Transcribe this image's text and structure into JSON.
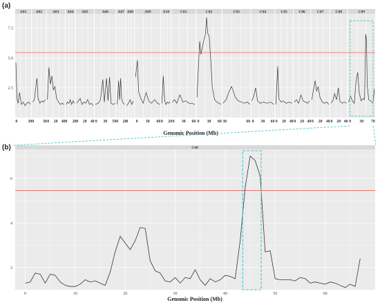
{
  "colors": {
    "panel_bg": "#ebebeb",
    "grid": "#ffffff",
    "strip_bg": "#d9d9d9",
    "line": "#333333",
    "threshold": "#e8605a",
    "highlight": "#4cc3c9"
  },
  "chart_data": [
    {
      "type": "line",
      "panel_tag": "(a)",
      "xlabel": "Genomic Position (Mb)",
      "ylabel": "",
      "ylim": [
        0,
        8.7
      ],
      "yticks": [
        "2.5",
        "5.0",
        "7.5"
      ],
      "threshold": 5.45,
      "grid": true,
      "highlight_box": "C09",
      "facets": [
        {
          "name": "A01",
          "xticks": [
            "0",
            "30"
          ],
          "series": [
            [
              0,
              4.6
            ],
            [
              3,
              1.6
            ],
            [
              6,
              1.2
            ],
            [
              10,
              2.1
            ],
            [
              15,
              1.1
            ],
            [
              20,
              1.3
            ],
            [
              25,
              1.0
            ],
            [
              30,
              1.2
            ],
            [
              35,
              1.3
            ],
            [
              40,
              1.1
            ]
          ]
        },
        {
          "name": "A02",
          "xticks": [
            "0",
            "30"
          ],
          "series": [
            [
              0,
              1.3
            ],
            [
              5,
              1.5
            ],
            [
              10,
              2.9
            ],
            [
              12,
              3.3
            ],
            [
              15,
              1.6
            ],
            [
              20,
              1.2
            ],
            [
              25,
              1.4
            ],
            [
              30,
              1.3
            ],
            [
              35,
              1.5
            ]
          ]
        },
        {
          "name": "A03",
          "xticks": [
            "0",
            "20",
            "40"
          ],
          "series": [
            [
              0,
              1.5
            ],
            [
              4,
              4.2
            ],
            [
              8,
              2.8
            ],
            [
              12,
              3.5
            ],
            [
              16,
              2.3
            ],
            [
              20,
              2.6
            ],
            [
              25,
              1.6
            ],
            [
              30,
              1.3
            ],
            [
              35,
              1.1
            ],
            [
              40,
              1.2
            ],
            [
              45,
              1.1
            ]
          ]
        },
        {
          "name": "A04",
          "xticks": [
            "0",
            "20"
          ],
          "series": [
            [
              0,
              1.1
            ],
            [
              4,
              1.3
            ],
            [
              8,
              1.2
            ],
            [
              12,
              1.5
            ],
            [
              16,
              1.1
            ],
            [
              20,
              1.4
            ],
            [
              24,
              1.2
            ]
          ]
        },
        {
          "name": "A05",
          "xticks": [
            "0",
            "20",
            "40"
          ],
          "series": [
            [
              0,
              1.2
            ],
            [
              5,
              1.4
            ],
            [
              10,
              1.6
            ],
            [
              15,
              1.1
            ],
            [
              20,
              1.3
            ],
            [
              25,
              1.2
            ],
            [
              30,
              1.5
            ],
            [
              35,
              1.1
            ],
            [
              40,
              1.2
            ],
            [
              45,
              1.0
            ]
          ]
        },
        {
          "name": "A06",
          "xticks": [
            "0",
            "30",
            "50"
          ],
          "series": [
            [
              0,
              1.1
            ],
            [
              8,
              1.2
            ],
            [
              14,
              1.5
            ],
            [
              20,
              3.2
            ],
            [
              24,
              1.3
            ],
            [
              30,
              3.3
            ],
            [
              34,
              1.4
            ],
            [
              38,
              3.4
            ],
            [
              42,
              1.2
            ],
            [
              48,
              1.1
            ],
            [
              53,
              1.2
            ]
          ]
        },
        {
          "name": "A07",
          "xticks": [
            "0",
            "20"
          ],
          "series": [
            [
              0,
              1.1
            ],
            [
              4,
              3.1
            ],
            [
              7,
              1.5
            ],
            [
              10,
              3.3
            ],
            [
              13,
              1.6
            ],
            [
              17,
              1.2
            ],
            [
              22,
              1.1
            ]
          ]
        },
        {
          "name": "A08",
          "xticks": [
            "0"
          ],
          "series": [
            [
              0,
              1.0
            ],
            [
              5,
              1.2
            ],
            [
              10,
              1.5
            ],
            [
              15,
              1.1
            ],
            [
              20,
              1.4
            ]
          ]
        },
        {
          "name": "A09",
          "xticks": [
            "0",
            "30",
            "60"
          ],
          "series": [
            [
              0,
              3.4
            ],
            [
              5,
              4.8
            ],
            [
              8,
              2.2
            ],
            [
              14,
              1.6
            ],
            [
              20,
              1.2
            ],
            [
              28,
              2.1
            ],
            [
              35,
              1.4
            ],
            [
              42,
              1.2
            ],
            [
              50,
              1.5
            ],
            [
              58,
              1.2
            ],
            [
              64,
              1.1
            ]
          ]
        },
        {
          "name": "A10",
          "xticks": [
            "0",
            "20"
          ],
          "series": [
            [
              0,
              1.2
            ],
            [
              4,
              3.5
            ],
            [
              8,
              1.4
            ],
            [
              12,
              1.1
            ],
            [
              16,
              1.3
            ],
            [
              20,
              1.2
            ],
            [
              24,
              1.3
            ]
          ]
        },
        {
          "name": "C01",
          "xticks": [
            "0",
            "30",
            "60"
          ],
          "series": [
            [
              0,
              1.3
            ],
            [
              6,
              1.5
            ],
            [
              12,
              1.2
            ],
            [
              20,
              1.9
            ],
            [
              28,
              1.3
            ],
            [
              36,
              1.4
            ],
            [
              44,
              1.2
            ],
            [
              52,
              1.2
            ],
            [
              60,
              1.1
            ]
          ]
        },
        {
          "name": "C02",
          "xticks": [
            "0",
            "30",
            "60"
          ],
          "series": [
            [
              0,
              1.7
            ],
            [
              4,
              4.5
            ],
            [
              7,
              6.4
            ],
            [
              10,
              5.3
            ],
            [
              14,
              5.9
            ],
            [
              18,
              6.5
            ],
            [
              22,
              7.0
            ],
            [
              25,
              8.4
            ],
            [
              28,
              7.1
            ],
            [
              32,
              6.8
            ],
            [
              36,
              4.9
            ],
            [
              40,
              2.6
            ],
            [
              46,
              1.5
            ],
            [
              52,
              1.3
            ],
            [
              58,
              1.2
            ],
            [
              63,
              1.1
            ]
          ]
        },
        {
          "name": "C03",
          "xticks": [
            "30",
            "60"
          ],
          "series": [
            [
              0,
              1.2
            ],
            [
              8,
              1.5
            ],
            [
              15,
              2.1
            ],
            [
              22,
              2.6
            ],
            [
              26,
              2.3
            ],
            [
              32,
              1.7
            ],
            [
              40,
              1.4
            ],
            [
              48,
              1.3
            ],
            [
              56,
              1.2
            ],
            [
              64,
              1.3
            ],
            [
              70,
              1.1
            ]
          ]
        },
        {
          "name": "C04",
          "xticks": [
            "0",
            "30",
            "60"
          ],
          "series": [
            [
              0,
              1.4
            ],
            [
              5,
              1.8
            ],
            [
              10,
              2.5
            ],
            [
              15,
              1.4
            ],
            [
              22,
              1.2
            ],
            [
              30,
              1.3
            ],
            [
              40,
              1.2
            ],
            [
              50,
              1.3
            ],
            [
              58,
              1.1
            ]
          ]
        },
        {
          "name": "C05",
          "xticks": [
            "0",
            "20",
            "40"
          ],
          "series": [
            [
              0,
              1.1
            ],
            [
              5,
              4.3
            ],
            [
              8,
              1.6
            ],
            [
              14,
              1.3
            ],
            [
              20,
              1.4
            ],
            [
              28,
              1.2
            ],
            [
              36,
              1.3
            ],
            [
              44,
              1.2
            ]
          ]
        },
        {
          "name": "C06",
          "xticks": [
            "0",
            "20",
            "40"
          ],
          "series": [
            [
              0,
              1.3
            ],
            [
              6,
              1.5
            ],
            [
              12,
              1.2
            ],
            [
              18,
              1.9
            ],
            [
              24,
              1.4
            ],
            [
              30,
              1.3
            ],
            [
              36,
              1.2
            ],
            [
              42,
              1.4
            ]
          ]
        },
        {
          "name": "C07",
          "xticks": [
            "0",
            "20",
            "40"
          ],
          "series": [
            [
              0,
              1.5
            ],
            [
              5,
              2.4
            ],
            [
              9,
              3.1
            ],
            [
              13,
              2.2
            ],
            [
              17,
              2.6
            ],
            [
              22,
              1.7
            ],
            [
              28,
              1.3
            ],
            [
              34,
              1.2
            ],
            [
              40,
              1.3
            ],
            [
              46,
              1.1
            ]
          ]
        },
        {
          "name": "C08",
          "xticks": [
            "0",
            "20",
            "40"
          ],
          "series": [
            [
              0,
              1.2
            ],
            [
              5,
              1.4
            ],
            [
              10,
              2.0
            ],
            [
              15,
              1.5
            ],
            [
              20,
              2.5
            ],
            [
              24,
              1.4
            ],
            [
              30,
              1.2
            ],
            [
              36,
              1.3
            ],
            [
              42,
              1.2
            ]
          ]
        },
        {
          "name": "C09",
          "xticks": [
            "0",
            "30",
            "70"
          ],
          "series": [
            [
              0,
              1.3
            ],
            [
              5,
              1.8
            ],
            [
              10,
              1.4
            ],
            [
              15,
              1.2
            ],
            [
              20,
              3.1
            ],
            [
              24,
              3.8
            ],
            [
              28,
              2.1
            ],
            [
              33,
              1.4
            ],
            [
              38,
              1.6
            ],
            [
              42,
              1.5
            ],
            [
              44,
              4.9
            ],
            [
              45,
              7.0
            ],
            [
              47,
              6.5
            ],
            [
              49,
              2.7
            ],
            [
              53,
              1.5
            ],
            [
              58,
              1.4
            ],
            [
              64,
              1.2
            ],
            [
              68,
              2.4
            ]
          ]
        }
      ]
    },
    {
      "type": "line",
      "panel_tag": "(b)",
      "facet": "C09",
      "xlabel": "Genomic Position (Mb)",
      "ylabel": "",
      "xlim": [
        -2,
        70
      ],
      "ylim": [
        1,
        7.3
      ],
      "xticks": [
        0,
        10,
        20,
        30,
        40,
        50,
        60
      ],
      "yticks": [
        2,
        4,
        6
      ],
      "threshold": 5.45,
      "grid": true,
      "highlight_range": [
        43.5,
        47.2
      ],
      "x": [
        0,
        1,
        2,
        3,
        4,
        5,
        6,
        7,
        8,
        9,
        10,
        11,
        12,
        13,
        14,
        15,
        16,
        17,
        18,
        19,
        20,
        21,
        22,
        23,
        24,
        25,
        26,
        27,
        28,
        29,
        30,
        31,
        32,
        33,
        34,
        35,
        36,
        37,
        38,
        39,
        40,
        41,
        42,
        43,
        44,
        45,
        46,
        47,
        48,
        49,
        50,
        51,
        52,
        53,
        54,
        55,
        56,
        57,
        58,
        59,
        60,
        61,
        62,
        63,
        64,
        65,
        66,
        67
      ],
      "y": [
        1.3,
        1.35,
        1.75,
        1.7,
        1.3,
        1.7,
        1.65,
        1.35,
        1.2,
        1.15,
        1.15,
        1.25,
        1.45,
        1.35,
        1.4,
        1.3,
        1.2,
        1.8,
        2.7,
        3.4,
        3.1,
        2.8,
        3.2,
        3.8,
        3.75,
        2.3,
        1.85,
        1.75,
        1.4,
        1.35,
        1.55,
        1.3,
        1.55,
        1.5,
        1.9,
        1.45,
        1.2,
        1.5,
        1.35,
        1.45,
        1.65,
        1.6,
        1.5,
        3.2,
        5.6,
        7.0,
        6.8,
        6.1,
        2.7,
        2.75,
        1.5,
        1.45,
        1.45,
        1.45,
        1.4,
        1.55,
        1.5,
        1.3,
        1.35,
        1.3,
        1.25,
        1.35,
        1.3,
        1.2,
        1.1,
        1.25,
        1.15,
        2.4
      ]
    }
  ]
}
